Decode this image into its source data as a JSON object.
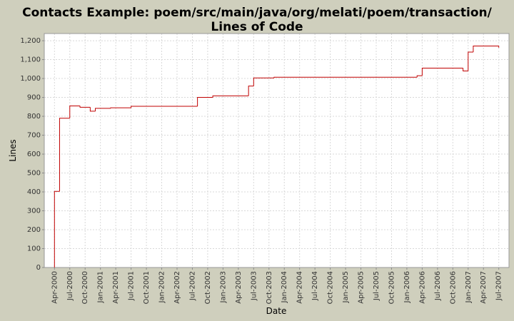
{
  "chart_data": {
    "type": "step",
    "title": [
      "Contacts Example: poem/src/main/java/org/melati/poem/transaction/",
      "Lines of Code"
    ],
    "x_label": "Date",
    "y_label": "Lines",
    "x": [
      "2000-04",
      "2000-04",
      "2000-05",
      "2000-05",
      "2000-07",
      "2000-07",
      "2000-09",
      "2000-11",
      "2000-12",
      "2001-03",
      "2001-07",
      "2002-08",
      "2002-11",
      "2003-06",
      "2003-07",
      "2003-11",
      "2006-03",
      "2006-04",
      "2006-12",
      "2007-01",
      "2007-01",
      "2007-01",
      "2007-02",
      "2007-02",
      "2007-07"
    ],
    "series": [
      {
        "name": "Lines",
        "color": "#c00000",
        "values": [
          0,
          403,
          780,
          790,
          838,
          855,
          848,
          827,
          842,
          845,
          853,
          900,
          908,
          960,
          1003,
          1007,
          1015,
          1055,
          1040,
          1100,
          1120,
          1140,
          1165,
          1172,
          1165
        ]
      }
    ],
    "xlim": [
      "2000-02",
      "2007-09"
    ],
    "xticks": [
      {
        "value": "2000-04",
        "label": "Apr-2000"
      },
      {
        "value": "2000-07",
        "label": "Jul-2000"
      },
      {
        "value": "2000-10",
        "label": "Oct-2000"
      },
      {
        "value": "2001-01",
        "label": "Jan-2001"
      },
      {
        "value": "2001-04",
        "label": "Apr-2001"
      },
      {
        "value": "2001-07",
        "label": "Jul-2001"
      },
      {
        "value": "2001-10",
        "label": "Oct-2001"
      },
      {
        "value": "2002-01",
        "label": "Jan-2002"
      },
      {
        "value": "2002-04",
        "label": "Apr-2002"
      },
      {
        "value": "2002-07",
        "label": "Jul-2002"
      },
      {
        "value": "2002-10",
        "label": "Oct-2002"
      },
      {
        "value": "2003-01",
        "label": "Jan-2003"
      },
      {
        "value": "2003-04",
        "label": "Apr-2003"
      },
      {
        "value": "2003-07",
        "label": "Jul-2003"
      },
      {
        "value": "2003-10",
        "label": "Oct-2003"
      },
      {
        "value": "2004-01",
        "label": "Jan-2004"
      },
      {
        "value": "2004-04",
        "label": "Apr-2004"
      },
      {
        "value": "2004-07",
        "label": "Jul-2004"
      },
      {
        "value": "2004-10",
        "label": "Oct-2004"
      },
      {
        "value": "2005-01",
        "label": "Jan-2005"
      },
      {
        "value": "2005-04",
        "label": "Apr-2005"
      },
      {
        "value": "2005-07",
        "label": "Jul-2005"
      },
      {
        "value": "2005-10",
        "label": "Oct-2005"
      },
      {
        "value": "2006-01",
        "label": "Jan-2006"
      },
      {
        "value": "2006-04",
        "label": "Apr-2006"
      },
      {
        "value": "2006-07",
        "label": "Jul-2006"
      },
      {
        "value": "2006-10",
        "label": "Oct-2006"
      },
      {
        "value": "2007-01",
        "label": "Jan-2007"
      },
      {
        "value": "2007-04",
        "label": "Apr-2007"
      },
      {
        "value": "2007-07",
        "label": "Jul-2007"
      }
    ],
    "ylim": [
      0,
      1238
    ],
    "yticks": [
      0,
      100,
      200,
      300,
      400,
      500,
      600,
      700,
      800,
      900,
      {
        "value": 1000,
        "label": "1,000"
      },
      {
        "value": 1100,
        "label": "1,100"
      },
      {
        "value": 1200,
        "label": "1,200"
      }
    ],
    "grid": true
  }
}
